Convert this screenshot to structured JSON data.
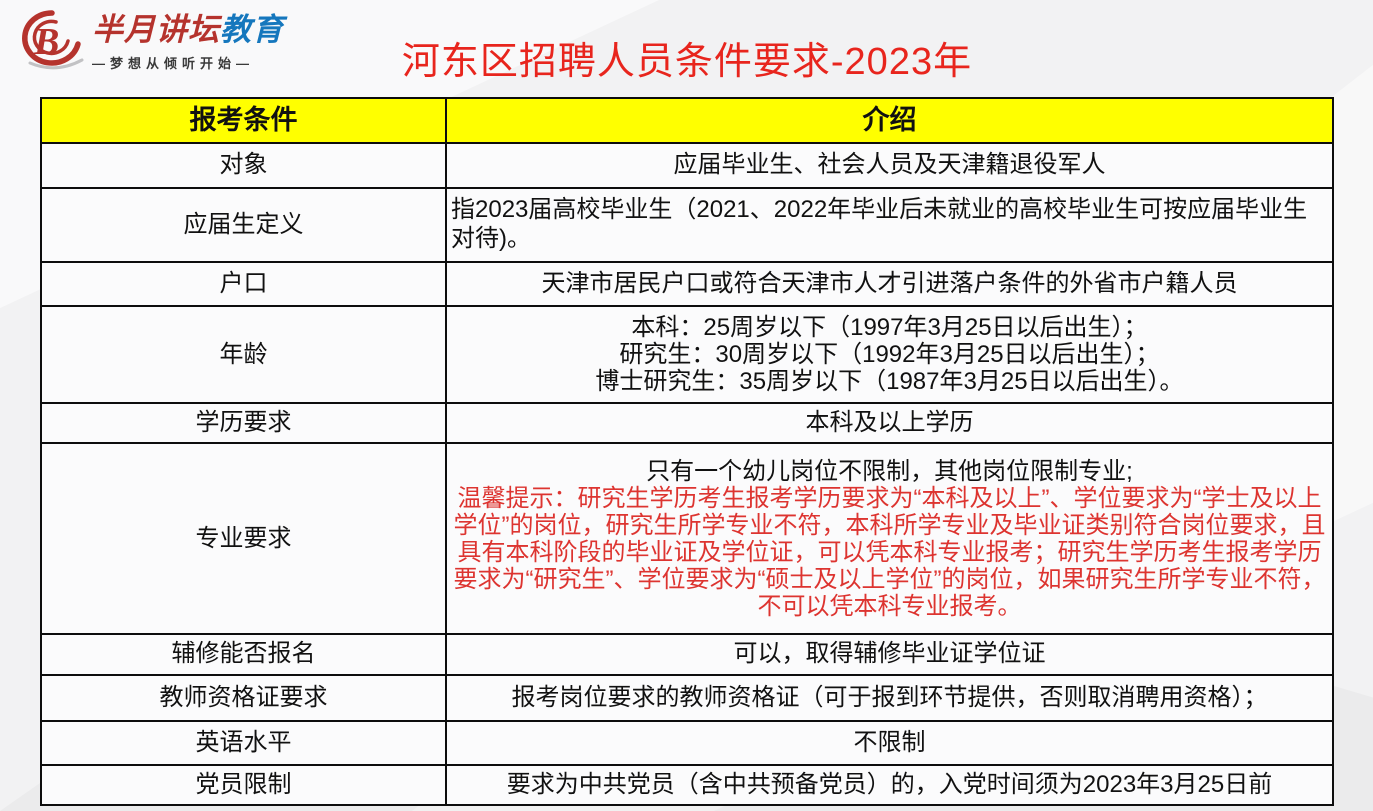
{
  "logo": {
    "brand_red": "半月讲坛",
    "brand_blue": "教育",
    "tagline": "—梦想从倾听开始—"
  },
  "title": "河东区招聘人员条件要求-2023年",
  "table": {
    "headers": [
      "报考条件",
      "介绍"
    ],
    "rows": [
      {
        "label": "对象",
        "content": "应届毕业生、社会人员及天津籍退役军人",
        "align": "center"
      },
      {
        "label": "应届生定义",
        "content": "指2023届高校毕业生（2021、2022年毕业后未就业的高校毕业生可按应届毕业生对待)。",
        "align": "left"
      },
      {
        "label": "户口",
        "content": "天津市居民户口或符合天津市人才引进落户条件的外省市户籍人员",
        "align": "center"
      },
      {
        "label": "年龄",
        "lines": [
          "本科：25周岁以下（1997年3月25日以后出生）；",
          "研究生：30周岁以下（1992年3月25日以后出生）；",
          "博士研究生：35周岁以下（1987年3月25日以后出生）。"
        ],
        "align": "center"
      },
      {
        "label": "学历要求",
        "content": "本科及以上学历",
        "align": "center"
      },
      {
        "label": "专业要求",
        "content": "只有一个幼儿岗位不限制，其他岗位限制专业;",
        "note": "温馨提示：研究生学历考生报考学历要求为“本科及以上”、学位要求为“学士及以上学位”的岗位，研究生所学专业不符，本科所学专业及毕业证类别符合岗位要求，且具有本科阶段的毕业证及学位证，可以凭本科专业报考；研究生学历考生报考学历要求为“研究生”、学位要求为“硕士及以上学位”的岗位，如果研究生所学专业不符，不可以凭本科专业报考。",
        "align": "center"
      },
      {
        "label": "辅修能否报名",
        "content": "可以，取得辅修毕业证学位证",
        "align": "center"
      },
      {
        "label": "教师资格证要求",
        "content": "报考岗位要求的教师资格证（可于报到环节提供，否则取消聘用资格）；",
        "align": "center"
      },
      {
        "label": "英语水平",
        "content": "不限制",
        "align": "center"
      },
      {
        "label": "党员限制",
        "content": "要求为中共党员（含中共预备党员）的，入党时间须为2023年3月25日前",
        "align": "center"
      }
    ]
  },
  "colors": {
    "title_red": "#e8251d",
    "note_red": "#dd3430",
    "brand_red": "#b5332d",
    "brand_blue": "#1577bd",
    "header_yellow": "#ffff00"
  }
}
